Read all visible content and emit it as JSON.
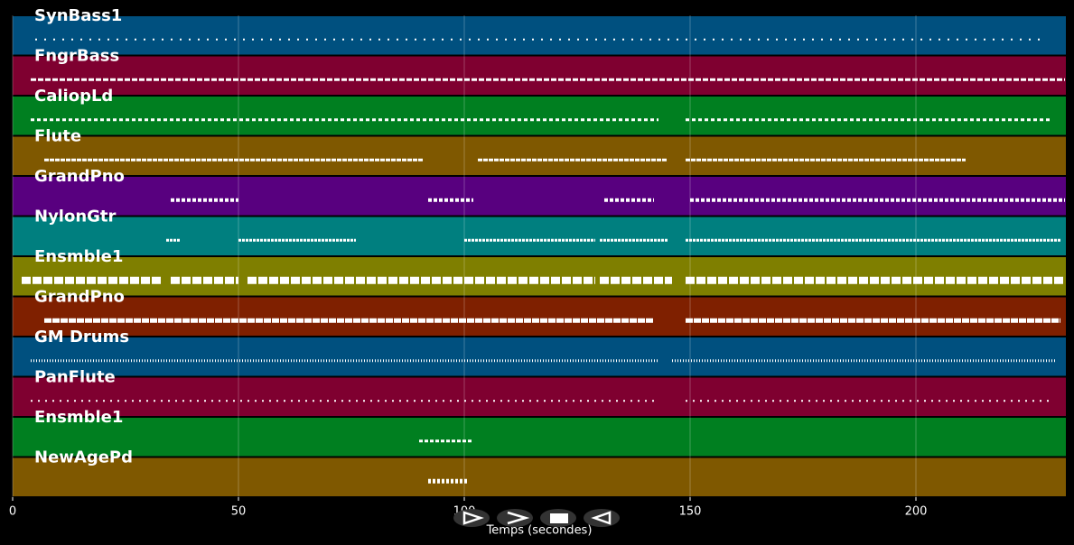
{
  "chart_data": {
    "type": "pianoroll",
    "xlabel": "Temps (secondes)",
    "xlim": [
      0,
      233.2
    ],
    "xticks": [
      0,
      50,
      100,
      150,
      200
    ],
    "grid": true,
    "tracks": [
      {
        "name": "SynBass1",
        "color": "#00507f",
        "segments": [
          [
            5,
            229
          ]
        ]
      },
      {
        "name": "FngrBass",
        "color": "#7f0030",
        "segments": [
          [
            4,
            233
          ]
        ]
      },
      {
        "name": "CaliopLd",
        "color": "#007f20",
        "segments": [
          [
            4,
            143
          ],
          [
            149,
            230
          ]
        ]
      },
      {
        "name": "Flute",
        "color": "#7f5800",
        "segments": [
          [
            7,
            91
          ],
          [
            103,
            145
          ],
          [
            149,
            211
          ]
        ]
      },
      {
        "name": "GrandPno",
        "color": "#58007f",
        "segments": [
          [
            35,
            50
          ],
          [
            92,
            102
          ],
          [
            131,
            142
          ],
          [
            150,
            233
          ]
        ]
      },
      {
        "name": "NylonGtr",
        "color": "#007f7f",
        "segments": [
          [
            34,
            37
          ],
          [
            50,
            76
          ],
          [
            100,
            129
          ],
          [
            130,
            145
          ],
          [
            149,
            232
          ]
        ]
      },
      {
        "name": "Ensmble1",
        "color": "#7f7f00",
        "segments": [
          [
            2,
            33
          ],
          [
            35,
            50
          ],
          [
            52,
            129
          ],
          [
            130,
            146
          ],
          [
            149,
            233
          ]
        ]
      },
      {
        "name": "GrandPno",
        "color": "#7f2000",
        "segments": [
          [
            7,
            142
          ],
          [
            149,
            232
          ]
        ]
      },
      {
        "name": "GM Drums",
        "color": "#00507f",
        "segments": [
          [
            4,
            143
          ],
          [
            146,
            231
          ]
        ]
      },
      {
        "name": "PanFlute",
        "color": "#7f0030",
        "segments": [
          [
            4,
            143
          ],
          [
            149,
            230
          ]
        ]
      },
      {
        "name": "Ensmble1",
        "color": "#007f20",
        "segments": [
          [
            90,
            102
          ]
        ]
      },
      {
        "name": "NewAgePd",
        "color": "#7f5800",
        "segments": [
          [
            92,
            101
          ]
        ]
      }
    ]
  }
}
